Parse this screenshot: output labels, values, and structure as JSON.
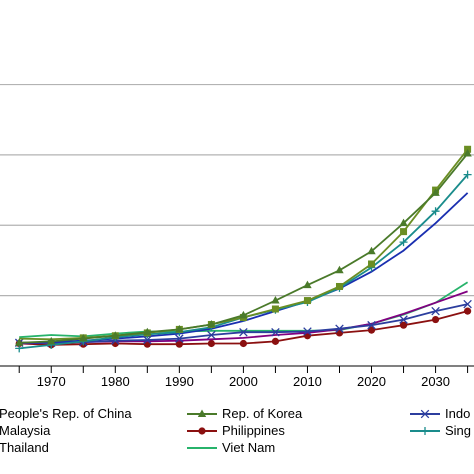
{
  "chart_data": {
    "type": "line",
    "title": "",
    "xlabel": "",
    "ylabel": "",
    "xlim": [
      1962,
      2036
    ],
    "ylim": [
      0,
      55
    ],
    "grid": "horizontal",
    "legend_position": "bottom",
    "x_ticks": [
      "1970",
      "1980",
      "1990",
      "2000",
      "2010",
      "2020",
      "2030"
    ],
    "x": [
      1965,
      1970,
      1975,
      1980,
      1985,
      1990,
      1995,
      2000,
      2005,
      2010,
      2015,
      2020,
      2025,
      2030,
      2035
    ],
    "series": [
      {
        "name": "People's Rep. of China",
        "color": "#6b8e23",
        "marker": "none",
        "values": [
          3.9,
          3.8,
          4.0,
          4.3,
          4.7,
          5.2,
          5.9,
          6.9,
          8.1,
          9.3,
          11.3,
          14.5,
          19.1,
          25.0,
          30.8
        ]
      },
      {
        "name": "Rep. of Korea",
        "color": "#4a7a2a",
        "marker": "triangle",
        "values": [
          3.3,
          3.5,
          3.9,
          4.3,
          4.8,
          5.2,
          5.9,
          7.2,
          9.3,
          11.5,
          13.6,
          16.3,
          20.3,
          24.6,
          30.2
        ]
      },
      {
        "name": "Indonesia",
        "color": "#2c3e9e",
        "marker": "x",
        "values": [
          3.3,
          3.3,
          3.4,
          3.6,
          3.7,
          3.9,
          4.4,
          4.8,
          4.8,
          4.9,
          5.3,
          5.8,
          6.6,
          7.8,
          8.8
        ]
      },
      {
        "name": "Malaysia",
        "color": "#800080",
        "marker": "none",
        "values": [
          3.2,
          3.3,
          3.4,
          3.5,
          3.5,
          3.6,
          3.8,
          4.0,
          4.4,
          4.7,
          5.2,
          6.0,
          7.4,
          9.0,
          10.6
        ]
      },
      {
        "name": "Philippines",
        "color": "#8b1010",
        "marker": "circle",
        "values": [
          3.2,
          3.0,
          3.1,
          3.2,
          3.1,
          3.1,
          3.2,
          3.2,
          3.5,
          4.3,
          4.7,
          5.1,
          5.8,
          6.6,
          7.8
        ]
      },
      {
        "name": "Singapore",
        "color": "#1a8c8c",
        "marker": "plus",
        "values": [
          2.5,
          3.0,
          3.5,
          4.1,
          4.5,
          4.8,
          5.5,
          6.9,
          8.0,
          9.1,
          11.1,
          14.0,
          17.6,
          22.0,
          27.2
        ]
      },
      {
        "name": "Thailand",
        "color": "#1a2fb0",
        "marker": "none",
        "values": [
          3.3,
          3.4,
          3.6,
          3.9,
          4.2,
          4.6,
          5.3,
          6.4,
          7.8,
          9.2,
          11.0,
          13.4,
          16.4,
          20.3,
          24.6
        ]
      },
      {
        "name": "Viet Nam",
        "color": "#27b36b",
        "marker": "none",
        "values": [
          4.1,
          4.4,
          4.2,
          4.6,
          4.9,
          4.9,
          5.0,
          5.0,
          5.0,
          5.0,
          5.1,
          6.0,
          7.3,
          9.0,
          11.9
        ]
      }
    ],
    "legend": {
      "rows": [
        [
          "People's Rep. of China",
          "Rep. of Korea",
          "Indo"
        ],
        [
          "Malaysia",
          "Philippines",
          "Sing"
        ],
        [
          "Thailand",
          "Viet Nam",
          ""
        ]
      ]
    }
  }
}
